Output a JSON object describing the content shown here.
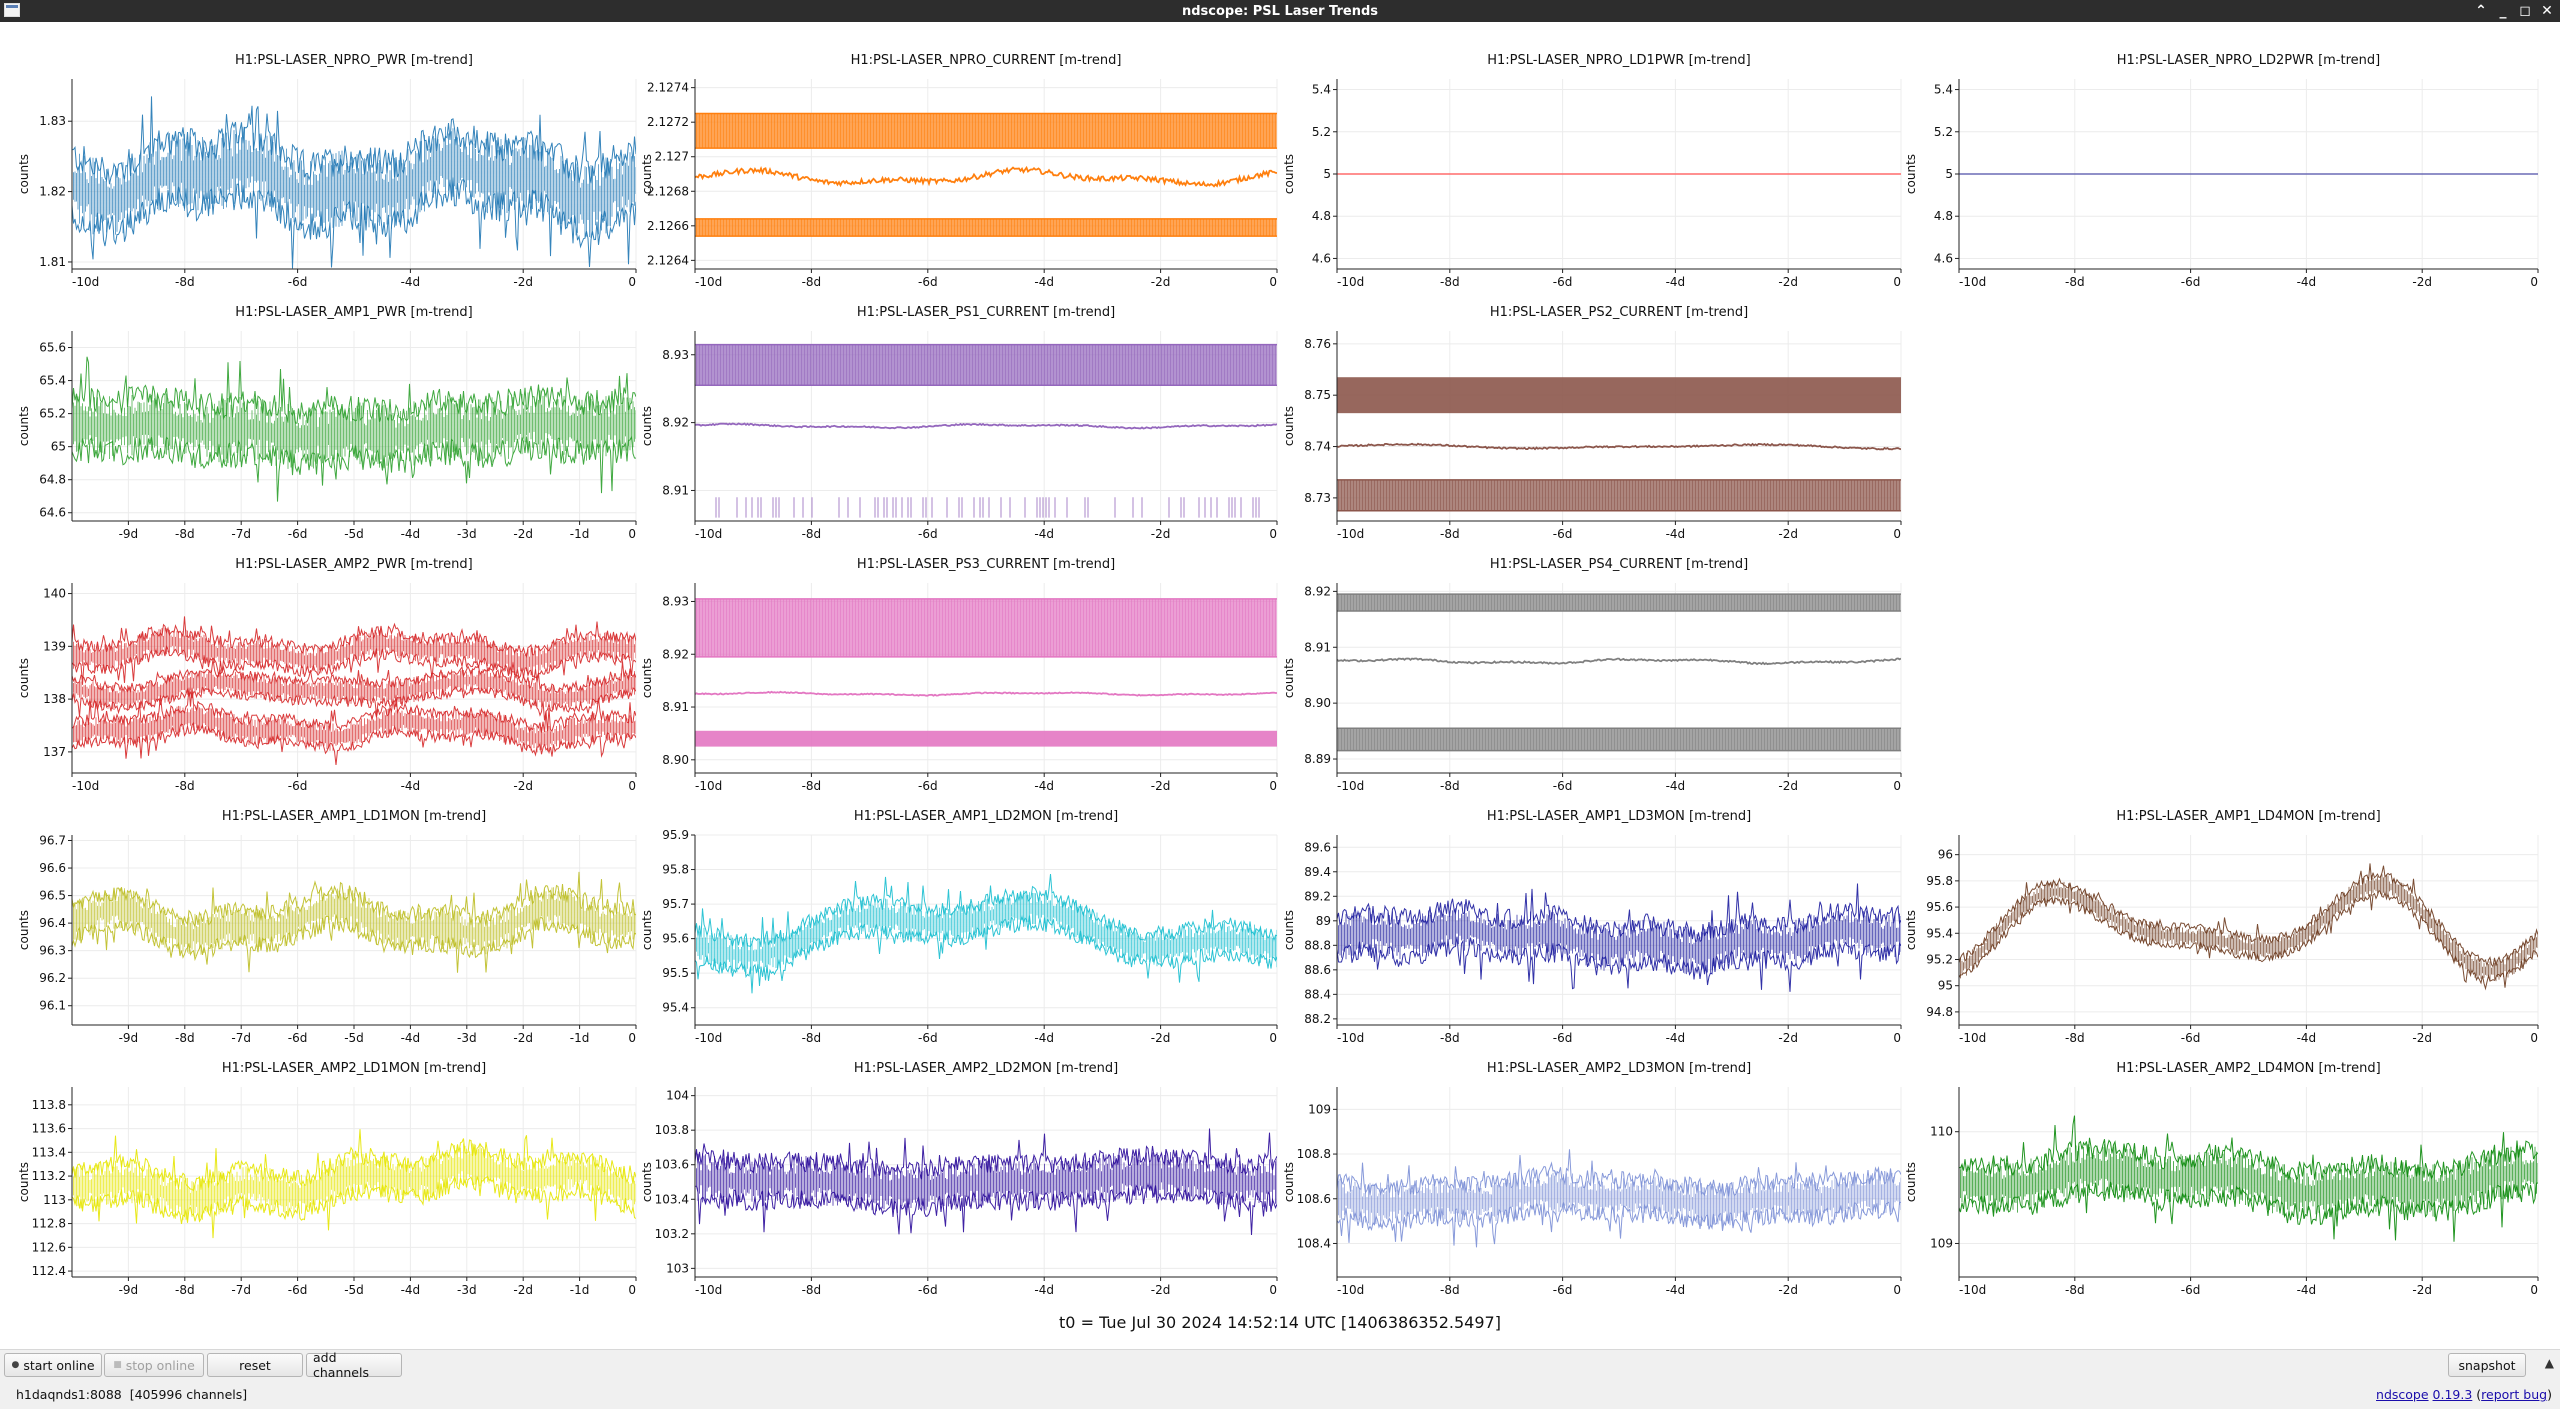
{
  "window": {
    "title": "ndscope: PSL Laser Trends"
  },
  "footer": {
    "t0": "t0 = Tue Jul 30 2024 14:52:14 UTC [1406386352.5497]"
  },
  "toolbar": {
    "start_online": "start online",
    "stop_online": "stop online",
    "reset": "reset",
    "add_channels": "add channels",
    "snapshot": "snapshot"
  },
  "status": {
    "server": "h1daqnds1:8088",
    "channels": "[405996 channels]",
    "version_prefix": "ndscope",
    "version": "0.19.3",
    "report_bug": "report bug"
  },
  "chart_data": [
    {
      "title": "H1:PSL-LASER_NPRO_PWR [m-trend]",
      "ylabel": "counts",
      "color": "#1f77b4",
      "kind": "noisy",
      "ylim": [
        1.809,
        1.836
      ],
      "yticks": [
        "1.81",
        "1.82",
        "1.83"
      ],
      "ytick_values": [
        1.81,
        1.82,
        1.83
      ],
      "xticks": [
        "-10d",
        "-8d",
        "-6d",
        "-4d",
        "-2d",
        "0"
      ],
      "xtick_values": [
        -10,
        -8,
        -6,
        -4,
        -2,
        0
      ],
      "xlim": [
        -10,
        0
      ],
      "series": [
        {
          "mean": 1.8215,
          "spread": 0.005,
          "wobble": 0.003
        }
      ]
    },
    {
      "title": "H1:PSL-LASER_NPRO_CURRENT [m-trend]",
      "ylabel": "counts",
      "color": "#ff7f0e",
      "kind": "bands",
      "ylim": [
        2.12635,
        2.12745
      ],
      "yticks": [
        "2.1264",
        "2.1266",
        "2.1268",
        "2.127",
        "2.1272",
        "2.1274"
      ],
      "ytick_values": [
        2.1264,
        2.1266,
        2.1268,
        2.127,
        2.1272,
        2.1274
      ],
      "xticks": [
        "-10d",
        "-8d",
        "-6d",
        "-4d",
        "-2d",
        "0"
      ],
      "xtick_values": [
        -10,
        -8,
        -6,
        -4,
        -2,
        0
      ],
      "xlim": [
        -10,
        0
      ],
      "series": [
        {
          "band": [
            2.12705,
            2.12725
          ]
        },
        {
          "mean": 2.12688,
          "spread": 3e-05
        },
        {
          "band": [
            2.12654,
            2.12664
          ]
        }
      ]
    },
    {
      "title": "H1:PSL-LASER_NPRO_LD1PWR [m-trend]",
      "ylabel": "counts",
      "color": "#ff6b6b",
      "kind": "flat",
      "ylim": [
        4.55,
        5.45
      ],
      "yticks": [
        "4.6",
        "4.8",
        "5",
        "5.2",
        "5.4"
      ],
      "ytick_values": [
        4.6,
        4.8,
        5,
        5.2,
        5.4
      ],
      "xticks": [
        "-10d",
        "-8d",
        "-6d",
        "-4d",
        "-2d",
        "0"
      ],
      "xtick_values": [
        -10,
        -8,
        -6,
        -4,
        -2,
        0
      ],
      "xlim": [
        -10,
        0
      ],
      "series": [
        {
          "mean": 5
        }
      ]
    },
    {
      "title": "H1:PSL-LASER_NPRO_LD2PWR [m-trend]",
      "ylabel": "counts",
      "color": "#6b6bb5",
      "kind": "flat",
      "ylim": [
        4.55,
        5.45
      ],
      "yticks": [
        "4.6",
        "4.8",
        "5",
        "5.2",
        "5.4"
      ],
      "ytick_values": [
        4.6,
        4.8,
        5,
        5.2,
        5.4
      ],
      "xticks": [
        "-10d",
        "-8d",
        "-6d",
        "-4d",
        "-2d",
        "0"
      ],
      "xtick_values": [
        -10,
        -8,
        -6,
        -4,
        -2,
        0
      ],
      "xlim": [
        -10,
        0
      ],
      "series": [
        {
          "mean": 5
        }
      ]
    },
    {
      "title": "H1:PSL-LASER_AMP1_PWR [m-trend]",
      "ylabel": "counts",
      "color": "#2ca02c",
      "kind": "noisy",
      "ylim": [
        64.55,
        65.7
      ],
      "yticks": [
        "64.6",
        "64.8",
        "65",
        "65.2",
        "65.4",
        "65.6"
      ],
      "ytick_values": [
        64.6,
        64.8,
        65,
        65.2,
        65.4,
        65.6
      ],
      "xticks": [
        "-9d",
        "-8d",
        "-7d",
        "-6d",
        "-5d",
        "-4d",
        "-3d",
        "-2d",
        "-1d",
        "0"
      ],
      "xtick_values": [
        -9,
        -8,
        -7,
        -6,
        -5,
        -4,
        -3,
        -2,
        -1,
        0
      ],
      "xlim": [
        -10,
        0
      ],
      "series": [
        {
          "mean": 65.1,
          "spread": 0.18,
          "wobble": 0.05
        }
      ]
    },
    {
      "title": "H1:PSL-LASER_PS1_CURRENT [m-trend]",
      "ylabel": "counts",
      "color": "#9467bd",
      "kind": "bands",
      "ylim": [
        8.9055,
        8.9335
      ],
      "yticks": [
        "8.91",
        "8.92",
        "8.93"
      ],
      "ytick_values": [
        8.91,
        8.92,
        8.93
      ],
      "xticks": [
        "-10d",
        "-8d",
        "-6d",
        "-4d",
        "-2d",
        "0"
      ],
      "xtick_values": [
        -10,
        -8,
        -6,
        -4,
        -2,
        0
      ],
      "xlim": [
        -10,
        0
      ],
      "series": [
        {
          "band": [
            8.9255,
            8.9315
          ]
        },
        {
          "mean": 8.9195,
          "spread": 0.0002
        },
        {
          "band": [
            8.906,
            8.909
          ],
          "sparse": true
        }
      ]
    },
    {
      "title": "H1:PSL-LASER_PS2_CURRENT [m-trend]",
      "ylabel": "counts",
      "color": "#8c564b",
      "kind": "bands",
      "ylim": [
        8.7255,
        8.7625
      ],
      "yticks": [
        "8.73",
        "8.74",
        "8.75",
        "8.76"
      ],
      "ytick_values": [
        8.73,
        8.74,
        8.75,
        8.76
      ],
      "xticks": [
        "-10d",
        "-8d",
        "-6d",
        "-4d",
        "-2d",
        "0"
      ],
      "xtick_values": [
        -10,
        -8,
        -6,
        -4,
        -2,
        0
      ],
      "xlim": [
        -10,
        0
      ],
      "series": [
        {
          "band": [
            8.7465,
            8.7535
          ],
          "solid": true
        },
        {
          "mean": 8.74,
          "spread": 0.0003
        },
        {
          "band": [
            8.7275,
            8.7335
          ]
        }
      ]
    },
    {
      "title": "H1:PSL-LASER_AMP2_PWR [m-trend]",
      "ylabel": "counts",
      "color": "#d62728",
      "kind": "noisy3",
      "ylim": [
        136.6,
        140.2
      ],
      "yticks": [
        "137",
        "138",
        "139",
        "140"
      ],
      "ytick_values": [
        137,
        138,
        139,
        140
      ],
      "xticks": [
        "-10d",
        "-8d",
        "-6d",
        "-4d",
        "-2d",
        "0"
      ],
      "xtick_values": [
        -10,
        -8,
        -6,
        -4,
        -2,
        0
      ],
      "xlim": [
        -10,
        0
      ],
      "series": [
        {
          "mean": 138.9,
          "spread": 0.25
        },
        {
          "mean": 138.2,
          "spread": 0.22
        },
        {
          "mean": 137.45,
          "spread": 0.25
        }
      ]
    },
    {
      "title": "H1:PSL-LASER_PS3_CURRENT [m-trend]",
      "ylabel": "counts",
      "color": "#e377c2",
      "kind": "bands",
      "ylim": [
        8.8975,
        8.9335
      ],
      "yticks": [
        "8.90",
        "8.91",
        "8.92",
        "8.93"
      ],
      "ytick_values": [
        8.9,
        8.91,
        8.92,
        8.93
      ],
      "xticks": [
        "-10d",
        "-8d",
        "-6d",
        "-4d",
        "-2d",
        "0"
      ],
      "xtick_values": [
        -10,
        -8,
        -6,
        -4,
        -2,
        0
      ],
      "xlim": [
        -10,
        0
      ],
      "series": [
        {
          "band": [
            8.9195,
            8.9305
          ]
        },
        {
          "mean": 8.9125,
          "spread": 0.0002
        },
        {
          "band": [
            8.9025,
            8.9055
          ],
          "solid": true
        }
      ]
    },
    {
      "title": "H1:PSL-LASER_PS4_CURRENT [m-trend]",
      "ylabel": "counts",
      "color": "#7f7f7f",
      "kind": "bands",
      "ylim": [
        8.8875,
        8.9215
      ],
      "yticks": [
        "8.89",
        "8.90",
        "8.91",
        "8.92"
      ],
      "ytick_values": [
        8.89,
        8.9,
        8.91,
        8.92
      ],
      "xticks": [
        "-10d",
        "-8d",
        "-6d",
        "-4d",
        "-2d",
        "0"
      ],
      "xtick_values": [
        -10,
        -8,
        -6,
        -4,
        -2,
        0
      ],
      "xlim": [
        -10,
        0
      ],
      "series": [
        {
          "band": [
            8.9165,
            8.9195
          ]
        },
        {
          "mean": 8.9075,
          "spread": 0.0003
        },
        {
          "band": [
            8.8915,
            8.8955
          ]
        }
      ]
    },
    {
      "title": "H1:PSL-LASER_AMP1_LD1MON [m-trend]",
      "ylabel": "counts",
      "color": "#bcbd22",
      "kind": "noisy",
      "ylim": [
        96.03,
        96.72
      ],
      "yticks": [
        "96.1",
        "96.2",
        "96.3",
        "96.4",
        "96.5",
        "96.6",
        "96.7"
      ],
      "ytick_values": [
        96.1,
        96.2,
        96.3,
        96.4,
        96.5,
        96.6,
        96.7
      ],
      "xticks": [
        "-9d",
        "-8d",
        "-7d",
        "-6d",
        "-5d",
        "-4d",
        "-3d",
        "-2d",
        "-1d",
        "0"
      ],
      "xtick_values": [
        -9,
        -8,
        -7,
        -6,
        -5,
        -4,
        -3,
        -2,
        -1,
        0
      ],
      "xlim": [
        -10,
        0
      ],
      "series": [
        {
          "mean": 96.4,
          "spread": 0.07,
          "wobble": 0.06
        }
      ]
    },
    {
      "title": "H1:PSL-LASER_AMP1_LD2MON [m-trend]",
      "ylabel": "counts",
      "color": "#17becf",
      "kind": "noisy",
      "ylim": [
        95.35,
        95.9
      ],
      "yticks": [
        "95.4",
        "95.5",
        "95.6",
        "95.7",
        "95.8",
        "95.9"
      ],
      "ytick_values": [
        95.4,
        95.5,
        95.6,
        95.7,
        95.8,
        95.9
      ],
      "xticks": [
        "-10d",
        "-8d",
        "-6d",
        "-4d",
        "-2d",
        "0"
      ],
      "xtick_values": [
        -10,
        -8,
        -6,
        -4,
        -2,
        0
      ],
      "xlim": [
        -10,
        0
      ],
      "series": [
        {
          "mean": 95.62,
          "spread": 0.05,
          "wobble": 0.08
        }
      ]
    },
    {
      "title": "H1:PSL-LASER_AMP1_LD3MON [m-trend]",
      "ylabel": "counts",
      "color": "#1c1c9e",
      "kind": "noisy",
      "ylim": [
        88.15,
        89.7
      ],
      "yticks": [
        "88.2",
        "88.4",
        "88.6",
        "88.8",
        "89",
        "89.2",
        "89.4",
        "89.6"
      ],
      "ytick_values": [
        88.2,
        88.4,
        88.6,
        88.8,
        89,
        89.2,
        89.4,
        89.6
      ],
      "xticks": [
        "-10d",
        "-8d",
        "-6d",
        "-4d",
        "-2d",
        "0"
      ],
      "xtick_values": [
        -10,
        -8,
        -6,
        -4,
        -2,
        0
      ],
      "xlim": [
        -10,
        0
      ],
      "series": [
        {
          "mean": 88.85,
          "spread": 0.18,
          "wobble": 0.1
        }
      ]
    },
    {
      "title": "H1:PSL-LASER_AMP1_LD4MON [m-trend]",
      "ylabel": "counts",
      "color": "#6b3a1e",
      "kind": "noisy",
      "ylim": [
        94.7,
        96.15
      ],
      "yticks": [
        "94.8",
        "95",
        "95.2",
        "95.4",
        "95.6",
        "95.8",
        "96"
      ],
      "ytick_values": [
        94.8,
        95,
        95.2,
        95.4,
        95.6,
        95.8,
        96
      ],
      "xticks": [
        "-10d",
        "-8d",
        "-6d",
        "-4d",
        "-2d",
        "0"
      ],
      "xtick_values": [
        -10,
        -8,
        -6,
        -4,
        -2,
        0
      ],
      "xlim": [
        -10,
        0
      ],
      "series": [
        {
          "mean": 95.45,
          "spread": 0.08,
          "wobble": 0.35
        }
      ]
    },
    {
      "title": "H1:PSL-LASER_AMP2_LD1MON [m-trend]",
      "ylabel": "counts",
      "color": "#e6e600",
      "kind": "noisy",
      "ylim": [
        112.35,
        113.95
      ],
      "yticks": [
        "112.4",
        "112.6",
        "112.8",
        "113",
        "113.2",
        "113.4",
        "113.6",
        "113.8"
      ],
      "ytick_values": [
        112.4,
        112.6,
        112.8,
        113,
        113.2,
        113.4,
        113.6,
        113.8
      ],
      "xticks": [
        "-9d",
        "-8d",
        "-7d",
        "-6d",
        "-5d",
        "-4d",
        "-3d",
        "-2d",
        "-1d",
        "0"
      ],
      "xtick_values": [
        -9,
        -8,
        -7,
        -6,
        -5,
        -4,
        -3,
        -2,
        -1,
        0
      ],
      "xlim": [
        -10,
        0
      ],
      "series": [
        {
          "mean": 113.15,
          "spread": 0.17,
          "wobble": 0.15
        }
      ]
    },
    {
      "title": "H1:PSL-LASER_AMP2_LD2MON [m-trend]",
      "ylabel": "counts",
      "color": "#2a0a9a",
      "kind": "noisy",
      "ylim": [
        102.95,
        104.05
      ],
      "yticks": [
        "103",
        "103.2",
        "103.4",
        "103.6",
        "103.8",
        "104"
      ],
      "ytick_values": [
        103,
        103.2,
        103.4,
        103.6,
        103.8,
        104
      ],
      "xticks": [
        "-10d",
        "-8d",
        "-6d",
        "-4d",
        "-2d",
        "0"
      ],
      "xtick_values": [
        -10,
        -8,
        -6,
        -4,
        -2,
        0
      ],
      "xlim": [
        -10,
        0
      ],
      "series": [
        {
          "mean": 103.5,
          "spread": 0.13,
          "wobble": 0.04
        }
      ]
    },
    {
      "title": "H1:PSL-LASER_AMP2_LD3MON [m-trend]",
      "ylabel": "counts",
      "color": "#7b8fd6",
      "kind": "noisy",
      "ylim": [
        108.25,
        109.1
      ],
      "yticks": [
        "108.4",
        "108.6",
        "108.8",
        "109"
      ],
      "ytick_values": [
        108.4,
        108.6,
        108.8,
        109
      ],
      "xticks": [
        "-10d",
        "-8d",
        "-6d",
        "-4d",
        "-2d",
        "0"
      ],
      "xtick_values": [
        -10,
        -8,
        -6,
        -4,
        -2,
        0
      ],
      "xlim": [
        -10,
        0
      ],
      "series": [
        {
          "mean": 108.6,
          "spread": 0.09,
          "wobble": 0.03
        }
      ]
    },
    {
      "title": "H1:PSL-LASER_AMP2_LD4MON [m-trend]",
      "ylabel": "counts",
      "color": "#0a8a0a",
      "kind": "noisy",
      "ylim": [
        108.7,
        110.4
      ],
      "yticks": [
        "109",
        "110"
      ],
      "ytick_values": [
        109,
        110
      ],
      "xticks": [
        "-10d",
        "-8d",
        "-6d",
        "-4d",
        "-2d",
        "0"
      ],
      "xtick_values": [
        -10,
        -8,
        -6,
        -4,
        -2,
        0
      ],
      "xlim": [
        -10,
        0
      ],
      "series": [
        {
          "mean": 109.55,
          "spread": 0.22,
          "wobble": 0.12
        }
      ]
    }
  ]
}
